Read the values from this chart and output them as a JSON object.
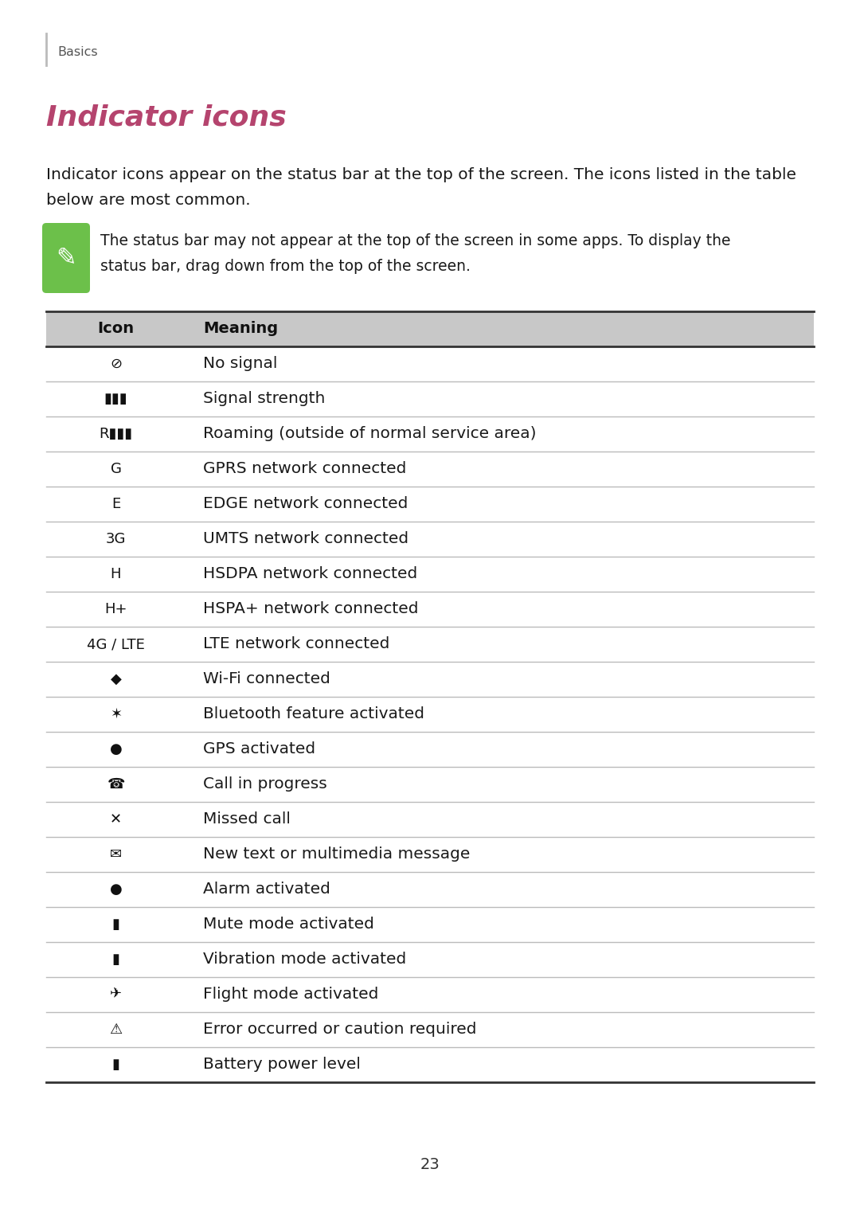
{
  "page_bg": "#ffffff",
  "header_text": "Basics",
  "header_color": "#555555",
  "title": "Indicator icons",
  "title_color": "#b5446e",
  "body_line1": "Indicator icons appear on the status bar at the top of the screen. The icons listed in the table",
  "body_line2": "below are most common.",
  "note_line1": "The status bar may not appear at the top of the screen in some apps. To display the",
  "note_line2": "status bar, drag down from the top of the screen.",
  "note_icon_color": "#6cc04a",
  "col_header_bg": "#c8c8c8",
  "col_header_icon": "Icon",
  "col_header_meaning": "Meaning",
  "table_rows": [
    {
      "meaning": "No signal"
    },
    {
      "meaning": "Signal strength"
    },
    {
      "meaning": "Roaming (outside of normal service area)"
    },
    {
      "meaning": "GPRS network connected"
    },
    {
      "meaning": "EDGE network connected"
    },
    {
      "meaning": "UMTS network connected"
    },
    {
      "meaning": "HSDPA network connected"
    },
    {
      "meaning": "HSPA+ network connected"
    },
    {
      "meaning": "LTE network connected"
    },
    {
      "meaning": "Wi-Fi connected"
    },
    {
      "meaning": "Bluetooth feature activated"
    },
    {
      "meaning": "GPS activated"
    },
    {
      "meaning": "Call in progress"
    },
    {
      "meaning": "Missed call"
    },
    {
      "meaning": "New text or multimedia message"
    },
    {
      "meaning": "Alarm activated"
    },
    {
      "meaning": "Mute mode activated"
    },
    {
      "meaning": "Vibration mode activated"
    },
    {
      "meaning": "Flight mode activated"
    },
    {
      "meaning": "Error occurred or caution required"
    },
    {
      "meaning": "Battery power level"
    }
  ],
  "icon_texts": [
    "⊘",
    "▮▮▮",
    "R▮▮▮",
    "G",
    "E",
    "3G",
    "H",
    "H+",
    "4G / LTE",
    "◆",
    "✶",
    "●",
    "☎",
    "✕",
    "✉",
    "●",
    "▮",
    "▮",
    "✈",
    "⚠",
    "▮"
  ],
  "page_number": "23",
  "table_line_color": "#bbbbbb",
  "font_size_body": 14.5,
  "font_size_title": 26,
  "font_size_note": 13.5
}
